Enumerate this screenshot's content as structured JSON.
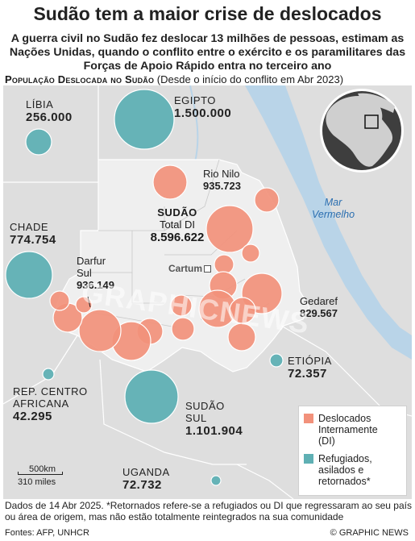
{
  "title": "Sudão tem a maior crise de deslocados",
  "subtitle": "A guerra civil no Sudão fez deslocar 13 milhões de pessoas, estimam as Nações Unidas, quando o conflito entre o exército e os paramilitares das Forças de Apoio Rápido entra no terceiro ano",
  "map_heading": {
    "main": "População Deslocada no Sudão",
    "note": "(Desde o início do conflito em Abr 2023)"
  },
  "colors": {
    "idp": "#f2917b",
    "refugees": "#5fb0b4",
    "sea": "#b9d4e8",
    "sudan": "#efefef",
    "land": "#dedede"
  },
  "places": {
    "libia": {
      "name": "LÍBIA",
      "value": "256.000"
    },
    "egito": {
      "name": "EGIPTO",
      "value": "1.500.000"
    },
    "chade": {
      "name": "CHADE",
      "value": "774.754"
    },
    "rca": {
      "name_line1": "REP. CENTRO",
      "name_line2": "AFRICANA",
      "value": "42.295"
    },
    "sudao_sul": {
      "name_line1": "SUDÃO",
      "name_line2": "SUL",
      "value": "1.101.904"
    },
    "uganda": {
      "name": "UGANDA",
      "value": "72.732"
    },
    "etiopia": {
      "name": "ETIÓPIA",
      "value": "72.357"
    },
    "sudao": {
      "name": "SUDÃO",
      "label": "Total DI",
      "value": "8.596.622"
    },
    "rio_nilo": {
      "name": "Rio Nilo",
      "value": "935.723"
    },
    "darfur_sul": {
      "name_line1": "Darfur",
      "name_line2": "Sul",
      "value": "936.149"
    },
    "gedaref": {
      "name": "Gedaref",
      "value": "829.567"
    },
    "cartum": {
      "name": "Cartum"
    },
    "mar_vermelho": {
      "line1": "Mar",
      "line2": "Vermelho"
    }
  },
  "legend": {
    "idp": {
      "line1": "Deslocados",
      "line2": "Internamente",
      "line3": "(DI)"
    },
    "refugees": {
      "line1": "Refugiados,",
      "line2": "asilados e",
      "line3": "retornados*"
    }
  },
  "scale": {
    "km": "500km",
    "miles": "310 miles"
  },
  "footnote": "Dados de 14 Abr 2025. *Retornados refere-se a refugiados ou DI que regressaram ao seu país ou área de origem, mas não estão totalmente reintegrados na sua comunidade",
  "sources": "Fontes: AFP, UNHCR",
  "credit": "© GRAPHIC NEWS",
  "watermark": "GRAPHICNEWS"
}
